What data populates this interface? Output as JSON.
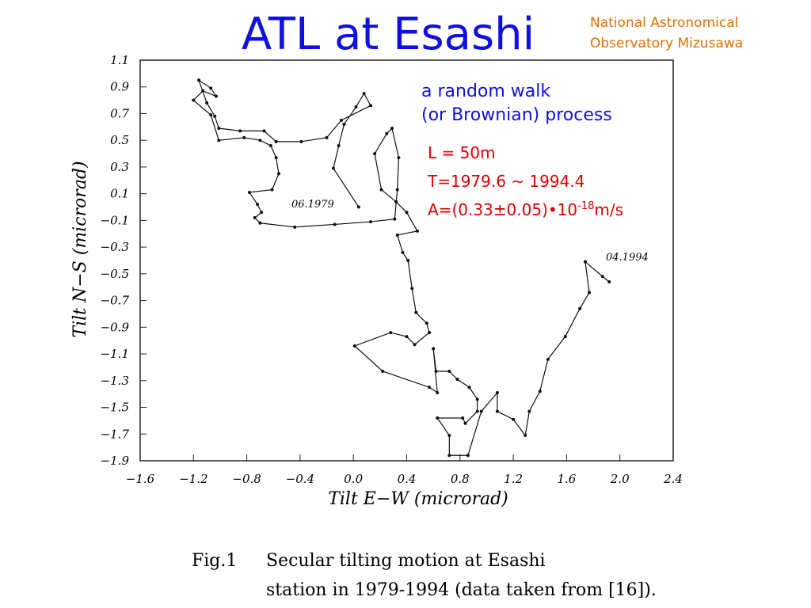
{
  "slide": {
    "title": "ATL at Esashi",
    "organization": [
      "National Astronomical",
      "Observatory Mizusawa"
    ],
    "notes": [
      "a random walk",
      "(or Brownian) process"
    ],
    "parameters": [
      "L = 50m",
      "T=1979.6 ~ 1994.4"
    ],
    "amplitude": [
      "A=(0.33±0.05)•10",
      "-18",
      "m/s"
    ],
    "caption": {
      "label": "Fig.1",
      "lines": [
        "Secular tilting motion at Esashi",
        "station in 1979-1994 (data taken from [16])."
      ]
    }
  },
  "chart_data": {
    "type": "line",
    "x_label": "Tilt E−W (microrad)",
    "y_label": "Tilt N−S (microrad)",
    "annotations": [
      "06.1979",
      "04.1994"
    ],
    "x": [
      0.04,
      -0.15,
      -0.11,
      -0.07,
      0.02,
      0.08,
      0.13,
      -0.09,
      -0.2,
      -0.39,
      -0.58,
      -0.67,
      -0.85,
      -1.01,
      -1.04,
      -1.1,
      -1.16,
      -1.07,
      -1.03,
      -1.13,
      -1.2,
      -1.07,
      -1.01,
      -0.82,
      -0.7,
      -0.62,
      -0.58,
      -0.56,
      -0.61,
      -0.78,
      -0.72,
      -0.69,
      -0.74,
      -0.7,
      -0.44,
      -0.14,
      0.13,
      0.31,
      0.33,
      0.34,
      0.29,
      0.25,
      0.16,
      0.21,
      0.32,
      0.4,
      0.48,
      0.33,
      0.37,
      0.41,
      0.44,
      0.47,
      0.55,
      0.57,
      0.46,
      0.4,
      0.28,
      0.01,
      0.22,
      0.57,
      0.63,
      0.6,
      0.62,
      0.72,
      0.78,
      0.87,
      0.93,
      0.93,
      0.84,
      0.82,
      0.63,
      0.72,
      0.72,
      0.86,
      0.96,
      1.08,
      1.08,
      1.2,
      1.29,
      1.32,
      1.4,
      1.46,
      1.59,
      1.7,
      1.77,
      1.74,
      1.87,
      1.92
    ],
    "series": [
      {
        "color": "#111111",
        "values": [
          0,
          0.29,
          0.46,
          0.62,
          0.75,
          0.85,
          0.76,
          0.65,
          0.52,
          0.49,
          0.49,
          0.57,
          0.57,
          0.59,
          0.68,
          0.78,
          0.95,
          0.89,
          0.83,
          0.87,
          0.8,
          0.69,
          0.5,
          0.52,
          0.5,
          0.46,
          0.37,
          0.25,
          0.13,
          0.11,
          0.02,
          -0.04,
          -0.08,
          -0.12,
          -0.15,
          -0.13,
          -0.11,
          -0.09,
          0.13,
          0.37,
          0.59,
          0.55,
          0.4,
          0.13,
          0.04,
          -0.04,
          -0.18,
          -0.21,
          -0.34,
          -0.4,
          -0.61,
          -0.79,
          -0.87,
          -0.94,
          -1.03,
          -0.97,
          -0.94,
          -1.04,
          -1.23,
          -1.35,
          -1.39,
          -1.06,
          -1.23,
          -1.23,
          -1.29,
          -1.35,
          -1.44,
          -1.53,
          -1.62,
          -1.58,
          -1.58,
          -1.71,
          -1.86,
          -1.86,
          -1.53,
          -1.39,
          -1.53,
          -1.59,
          -1.71,
          -1.53,
          -1.38,
          -1.14,
          -0.97,
          -0.76,
          -0.64,
          -0.41,
          -0.52,
          -0.56
        ]
      }
    ],
    "xlim": [
      -1.6,
      2.4
    ],
    "xticks": [
      {
        "value": -1.6,
        "label": "−1.6"
      },
      {
        "value": -1.2,
        "label": "−1.2"
      },
      {
        "value": -0.8,
        "label": "−0.8"
      },
      {
        "value": -0.4,
        "label": "−0.4"
      },
      {
        "value": 0,
        "label": "0.0"
      },
      0.4,
      0.8,
      1.2,
      1.6,
      {
        "value": 2,
        "label": "2.0"
      },
      2.4
    ],
    "ylim": [
      -1.9,
      1.1
    ],
    "yticks": [
      1.1,
      0.9,
      0.7,
      0.5,
      0.3,
      0.1,
      {
        "value": -0.1,
        "label": "−0.1"
      },
      {
        "value": -0.3,
        "label": "−0.3"
      },
      {
        "value": -0.5,
        "label": "−0.5"
      },
      {
        "value": -0.7,
        "label": "−0.7"
      },
      {
        "value": -0.9,
        "label": "−0.9"
      },
      {
        "value": -1.1,
        "label": "−1.1"
      },
      {
        "value": -1.3,
        "label": "−1.3"
      },
      {
        "value": -1.5,
        "label": "−1.5"
      },
      {
        "value": -1.7,
        "label": "−1.7"
      },
      {
        "value": -1.9,
        "label": "−1.9"
      }
    ]
  }
}
